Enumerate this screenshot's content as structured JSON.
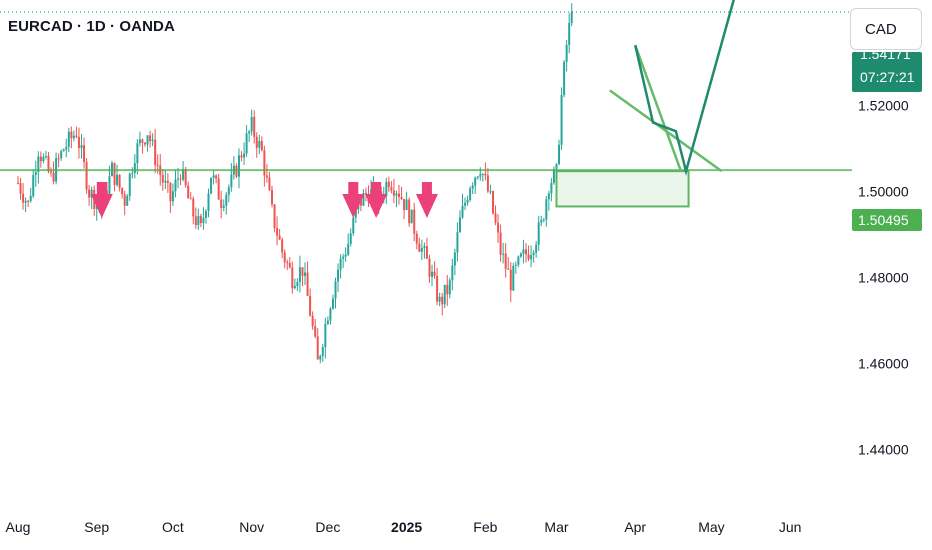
{
  "header": {
    "title": "EURCAD · 1D · OANDA"
  },
  "currency_button": {
    "label": "CAD"
  },
  "price_tag": {
    "price": "1.54171",
    "countdown": "07:27:21"
  },
  "level_tag": {
    "label": "1.50495"
  },
  "colors": {
    "up": "#26a69a",
    "down": "#ef5350",
    "arrow": "#ec407a",
    "level_line": "#4caf50",
    "zone_fill": "#e8f5e9",
    "projection": "#1e8a6e",
    "flag": "#66bb6a"
  },
  "chart_data": {
    "type": "candlestick",
    "title": "EURCAD · 1D · OANDA",
    "ylim": [
      1.437,
      1.548
    ],
    "y_ticks": [
      "1.44000",
      "1.46000",
      "1.48000",
      "1.50000",
      "1.52000"
    ],
    "x_ticks": [
      {
        "label": "Aug",
        "day": 0
      },
      {
        "label": "Sep",
        "day": 31
      },
      {
        "label": "Oct",
        "day": 61
      },
      {
        "label": "Nov",
        "day": 92
      },
      {
        "label": "Dec",
        "day": 122
      },
      {
        "label": "2025",
        "day": 153,
        "bold": true
      },
      {
        "label": "Feb",
        "day": 184
      },
      {
        "label": "Mar",
        "day": 212
      },
      {
        "label": "Apr",
        "day": 243
      },
      {
        "label": "May",
        "day": 273
      },
      {
        "label": "Jun",
        "day": 304
      }
    ],
    "anchors": [
      [
        0,
        1.502
      ],
      [
        4,
        1.497
      ],
      [
        8,
        1.51
      ],
      [
        13,
        1.503
      ],
      [
        18,
        1.51
      ],
      [
        23,
        1.514
      ],
      [
        28,
        1.5
      ],
      [
        33,
        1.496
      ],
      [
        37,
        1.505
      ],
      [
        42,
        1.498
      ],
      [
        46,
        1.509
      ],
      [
        51,
        1.514
      ],
      [
        56,
        1.504
      ],
      [
        60,
        1.498
      ],
      [
        64,
        1.505
      ],
      [
        68,
        1.496
      ],
      [
        72,
        1.491
      ],
      [
        76,
        1.504
      ],
      [
        80,
        1.498
      ],
      [
        84,
        1.502
      ],
      [
        88,
        1.509
      ],
      [
        92,
        1.515
      ],
      [
        96,
        1.509
      ],
      [
        100,
        1.495
      ],
      [
        104,
        1.486
      ],
      [
        108,
        1.48
      ],
      [
        112,
        1.482
      ],
      [
        115,
        1.472
      ],
      [
        118,
        1.46
      ],
      [
        122,
        1.472
      ],
      [
        126,
        1.482
      ],
      [
        130,
        1.488
      ],
      [
        134,
        1.497
      ],
      [
        138,
        1.5
      ],
      [
        142,
        1.498
      ],
      [
        146,
        1.503
      ],
      [
        150,
        1.5
      ],
      [
        154,
        1.495
      ],
      [
        158,
        1.488
      ],
      [
        162,
        1.482
      ],
      [
        166,
        1.474
      ],
      [
        170,
        1.478
      ],
      [
        174,
        1.493
      ],
      [
        178,
        1.502
      ],
      [
        182,
        1.506
      ],
      [
        186,
        1.498
      ],
      [
        190,
        1.486
      ],
      [
        194,
        1.479
      ],
      [
        198,
        1.484
      ],
      [
        202,
        1.487
      ],
      [
        206,
        1.492
      ],
      [
        209,
        1.502
      ],
      [
        212,
        1.504
      ],
      [
        214,
        1.522
      ],
      [
        216,
        1.534
      ],
      [
        218,
        1.5417
      ]
    ],
    "level": 1.50495,
    "zone": {
      "x_start_day": 212,
      "x_end_day": 264,
      "y_top": 1.5047,
      "y_bottom": 1.4965
    },
    "arrow_markers_days": [
      33,
      132,
      141,
      161
    ],
    "projection_path": [
      [
        243,
        1.534
      ],
      [
        250,
        1.516
      ],
      [
        259,
        1.514
      ],
      [
        263,
        1.5047
      ],
      [
        286,
        1.5535
      ]
    ],
    "flag_lines": [
      [
        [
          233,
          1.5235
        ],
        [
          277,
          1.5047
        ]
      ],
      [
        [
          243,
          1.534
        ],
        [
          261,
          1.5047
        ]
      ]
    ]
  }
}
